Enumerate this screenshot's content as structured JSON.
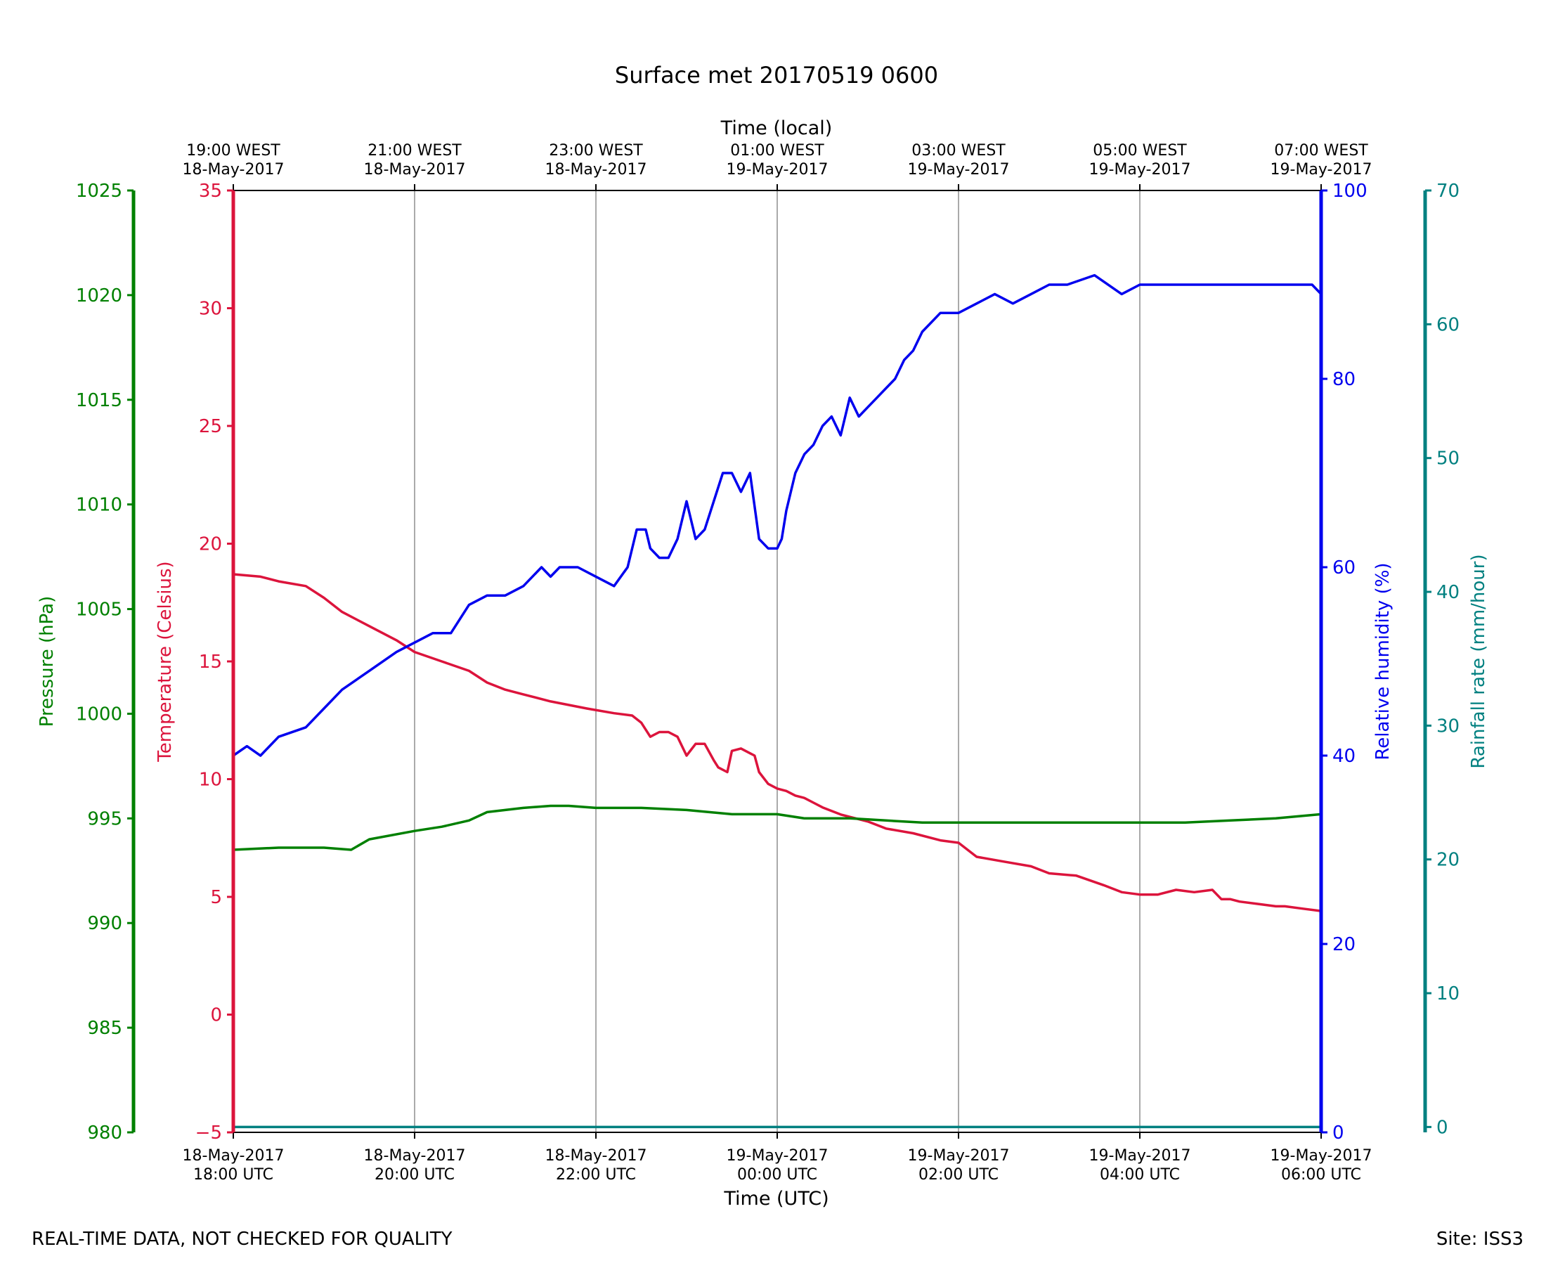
{
  "chart_data": {
    "type": "line",
    "title": "Surface met 20170519 0600",
    "footer_left": "REAL-TIME DATA, NOT CHECKED FOR QUALITY",
    "footer_right": "Site: ISS3",
    "x_bottom_label": "Time (UTC)",
    "x_top_label": "Time (local)",
    "x_range_hours": [
      0,
      12
    ],
    "x_ticks_bottom": [
      {
        "hour": 0,
        "line1": "18-May-2017",
        "line2": "18:00 UTC"
      },
      {
        "hour": 2,
        "line1": "18-May-2017",
        "line2": "20:00 UTC"
      },
      {
        "hour": 4,
        "line1": "18-May-2017",
        "line2": "22:00 UTC"
      },
      {
        "hour": 6,
        "line1": "19-May-2017",
        "line2": "00:00 UTC"
      },
      {
        "hour": 8,
        "line1": "19-May-2017",
        "line2": "02:00 UTC"
      },
      {
        "hour": 10,
        "line1": "19-May-2017",
        "line2": "04:00 UTC"
      },
      {
        "hour": 12,
        "line1": "19-May-2017",
        "line2": "06:00 UTC"
      }
    ],
    "x_ticks_top": [
      {
        "hour": 0,
        "line1": "19:00 WEST",
        "line2": "18-May-2017"
      },
      {
        "hour": 2,
        "line1": "21:00 WEST",
        "line2": "18-May-2017"
      },
      {
        "hour": 4,
        "line1": "23:00 WEST",
        "line2": "18-May-2017"
      },
      {
        "hour": 6,
        "line1": "01:00 WEST",
        "line2": "19-May-2017"
      },
      {
        "hour": 8,
        "line1": "03:00 WEST",
        "line2": "19-May-2017"
      },
      {
        "hour": 10,
        "line1": "05:00 WEST",
        "line2": "19-May-2017"
      },
      {
        "hour": 12,
        "line1": "07:00 WEST",
        "line2": "19-May-2017"
      }
    ],
    "axes": {
      "pressure": {
        "label": "Pressure (hPa)",
        "color": "#008000",
        "range": [
          980,
          1025
        ],
        "ticks": [
          980,
          985,
          990,
          995,
          1000,
          1005,
          1010,
          1015,
          1020,
          1025
        ]
      },
      "temperature": {
        "label": "Temperature (Celsius)",
        "color": "#dc143c",
        "range": [
          -5,
          35
        ],
        "ticks": [
          -5,
          0,
          5,
          10,
          15,
          20,
          25,
          30,
          35
        ],
        "tick_labels": [
          "−5",
          "0",
          "5",
          "10",
          "15",
          "20",
          "25",
          "30",
          "35"
        ]
      },
      "humidity": {
        "label": "Relative humidity (%)",
        "color": "#0000ee",
        "range": [
          0,
          100
        ],
        "ticks": [
          0,
          20,
          40,
          60,
          80,
          100
        ]
      },
      "rainfall": {
        "label": "Rainfall rate (mm/hour)",
        "color": "#008080",
        "range": [
          -0.4,
          70
        ],
        "ticks": [
          0,
          10,
          20,
          30,
          40,
          50,
          60,
          70
        ]
      }
    },
    "grid": "vertical",
    "series": [
      {
        "axis": "temperature",
        "x": [
          0,
          0.3,
          0.5,
          0.8,
          1.0,
          1.2,
          1.5,
          1.8,
          2.0,
          2.3,
          2.6,
          2.8,
          3.0,
          3.2,
          3.5,
          3.9,
          4.2,
          4.4,
          4.5,
          4.6,
          4.7,
          4.8,
          4.9,
          5.0,
          5.1,
          5.2,
          5.3,
          5.35,
          5.45,
          5.5,
          5.6,
          5.7,
          5.75,
          5.8,
          5.9,
          6.0,
          6.1,
          6.2,
          6.3,
          6.4,
          6.5,
          6.7,
          7.0,
          7.2,
          7.5,
          7.8,
          8.0,
          8.2,
          8.5,
          8.8,
          9.0,
          9.3,
          9.6,
          9.8,
          10.0,
          10.2,
          10.4,
          10.6,
          10.8,
          10.9,
          11.0,
          11.1,
          11.3,
          11.5,
          11.6,
          11.8,
          12.0
        ],
        "y": [
          18.7,
          18.6,
          18.4,
          18.2,
          17.7,
          17.1,
          16.5,
          15.9,
          15.4,
          15.0,
          14.6,
          14.1,
          13.8,
          13.6,
          13.3,
          13.0,
          12.8,
          12.7,
          12.4,
          11.8,
          12.0,
          12.0,
          11.8,
          11.0,
          11.5,
          11.5,
          10.8,
          10.5,
          10.3,
          11.2,
          11.3,
          11.1,
          11.0,
          10.3,
          9.8,
          9.6,
          9.5,
          9.3,
          9.2,
          9.0,
          8.8,
          8.5,
          8.2,
          7.9,
          7.7,
          7.4,
          7.3,
          6.7,
          6.5,
          6.3,
          6.0,
          5.9,
          5.5,
          5.2,
          5.1,
          5.1,
          5.3,
          5.2,
          5.3,
          4.9,
          4.9,
          4.8,
          4.7,
          4.6,
          4.6,
          4.5,
          4.4
        ]
      },
      {
        "axis": "humidity",
        "x": [
          0,
          0.15,
          0.3,
          0.5,
          0.8,
          1.0,
          1.2,
          1.5,
          1.8,
          2.0,
          2.2,
          2.4,
          2.6,
          2.8,
          3.0,
          3.2,
          3.4,
          3.5,
          3.6,
          3.8,
          4.0,
          4.2,
          4.35,
          4.45,
          4.55,
          4.6,
          4.7,
          4.8,
          4.9,
          5.0,
          5.1,
          5.2,
          5.3,
          5.4,
          5.5,
          5.6,
          5.7,
          5.8,
          5.9,
          6.0,
          6.05,
          6.1,
          6.2,
          6.3,
          6.4,
          6.5,
          6.6,
          6.7,
          6.8,
          6.9,
          7.0,
          7.1,
          7.2,
          7.3,
          7.4,
          7.5,
          7.6,
          7.7,
          7.8,
          8.0,
          8.2,
          8.4,
          8.6,
          8.8,
          9.0,
          9.2,
          9.5,
          9.8,
          10.0,
          10.2,
          10.4,
          10.6,
          10.8,
          11.0,
          11.2,
          11.4,
          11.6,
          11.8,
          11.9,
          12.0
        ],
        "y": [
          40,
          41,
          40,
          42,
          43,
          45,
          47,
          49,
          51,
          52,
          53,
          53,
          56,
          57,
          57,
          58,
          60,
          59,
          60,
          60,
          59,
          58,
          60,
          64,
          64,
          62,
          61,
          61,
          63,
          67,
          63,
          64,
          67,
          70,
          70,
          68,
          70,
          63,
          62,
          62,
          63,
          66,
          70,
          72,
          73,
          75,
          76,
          74,
          78,
          76,
          77,
          78,
          79,
          80,
          82,
          83,
          85,
          86,
          87,
          87,
          88,
          89,
          88,
          89,
          90,
          90,
          91,
          89,
          90,
          90,
          90,
          90,
          90,
          90,
          90,
          90,
          90,
          90,
          90,
          89
        ]
      },
      {
        "axis": "pressure",
        "x": [
          0,
          0.5,
          1.0,
          1.3,
          1.5,
          2.0,
          2.3,
          2.6,
          2.8,
          3.0,
          3.2,
          3.5,
          3.7,
          4.0,
          4.5,
          5.0,
          5.5,
          6.0,
          6.3,
          6.8,
          7.2,
          7.6,
          8.0,
          8.4,
          8.8,
          9.2,
          9.6,
          10.0,
          10.5,
          11.0,
          11.5,
          12.0
        ],
        "y": [
          993.5,
          993.6,
          993.6,
          993.5,
          994.0,
          994.4,
          994.6,
          994.9,
          995.3,
          995.4,
          995.5,
          995.6,
          995.6,
          995.5,
          995.5,
          995.4,
          995.2,
          995.2,
          995.0,
          995.0,
          994.9,
          994.8,
          994.8,
          994.8,
          994.8,
          994.8,
          994.8,
          994.8,
          994.8,
          994.9,
          995.0,
          995.2
        ]
      },
      {
        "axis": "rainfall",
        "x": [
          0,
          12
        ],
        "y": [
          0,
          0
        ]
      }
    ]
  }
}
